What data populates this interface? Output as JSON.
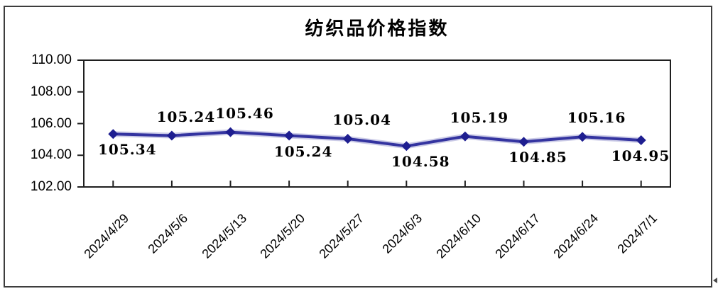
{
  "chart_data": {
    "type": "line",
    "title": "纺织品价格指数",
    "x": [
      "2024/4/29",
      "2024/5/6",
      "2024/5/13",
      "2024/5/20",
      "2024/5/27",
      "2024/6/3",
      "2024/6/10",
      "2024/6/17",
      "2024/6/24",
      "2024/7/1"
    ],
    "series": [
      {
        "name": "纺织品价格指数",
        "values": [
          105.34,
          105.24,
          105.46,
          105.24,
          105.04,
          104.58,
          105.19,
          104.85,
          105.16,
          104.95
        ]
      }
    ],
    "data_labels": [
      "105.34",
      "105.24",
      "105.46",
      "105.24",
      "105.04",
      "104.58",
      "105.19",
      "104.85",
      "105.16",
      "104.95"
    ],
    "data_label_position": [
      "below",
      "above",
      "above",
      "below",
      "above",
      "below",
      "above",
      "below",
      "above",
      "below"
    ],
    "ylim": [
      102,
      110
    ],
    "ytick_labels": [
      "110.00",
      "108.00",
      "106.00",
      "104.00",
      "102.00"
    ],
    "xlabel_rotation_deg": 45,
    "grid": false,
    "legend_position": "none",
    "colors": {
      "line": "#3434a0",
      "marker": "#1e1e90",
      "axis": "#1f1f1f",
      "text": "#000000",
      "frame_border": "#3d3d3d"
    }
  },
  "icons": {
    "scroll_left_arrow": "left-triangle"
  }
}
